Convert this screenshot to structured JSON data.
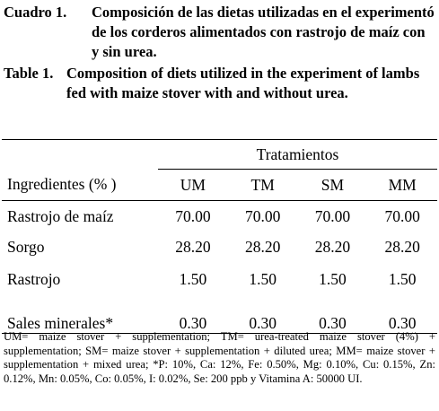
{
  "caption_es": {
    "label": "Cuadro 1.",
    "text": "Composición de las dietas utilizadas en el experimentó de los corderos alimentados con rastrojo de maíz con y sin urea."
  },
  "caption_en": {
    "label": "Table 1.",
    "text": "Composition of diets utilized in the experiment of lambs fed with maize stover with and without urea."
  },
  "table": {
    "group_header": "Tratamientos",
    "columns": [
      "Ingredientes (% )",
      "UM",
      "TM",
      "SM",
      "MM"
    ],
    "rows": [
      [
        "Rastrojo de maíz",
        "70.00",
        "70.00",
        "70.00",
        "70.00"
      ],
      [
        "Sorgo",
        "28.20",
        "28.20",
        "28.20",
        "28.20"
      ],
      [
        "Rastrojo",
        "1.50",
        "1.50",
        "1.50",
        "1.50"
      ],
      [
        "Sales minerales*",
        "0.30",
        "0.30",
        "0.30",
        "0.30"
      ]
    ]
  },
  "footnote": "UM= maize stover + supplementation; TM= urea-treated maize stover (4%) + supplementation; SM= maize stover + supplementation + diluted urea; MM= maize stover + supplementation + mixed urea; *P: 10%, Ca: 12%, Fe: 0.50%, Mg: 0.10%, Cu: 0.15%, Zn: 0.12%, Mn: 0.05%, Co: 0.05%, I: 0.02%, Se: 200 ppb y Vitamina A: 50000 UI."
}
